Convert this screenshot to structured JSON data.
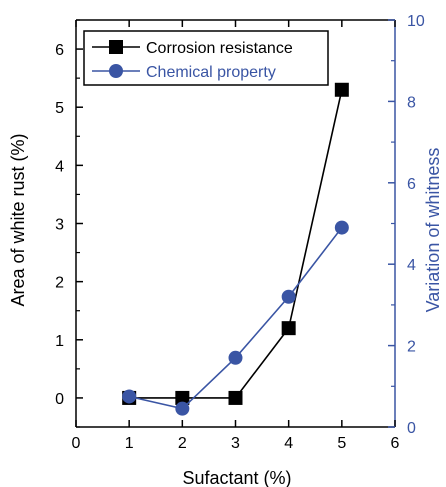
{
  "chart_data": {
    "type": "line",
    "xlabel": "Sufactant (%)",
    "ylabel": "Area of white rust (%)",
    "y2label": "Variation of whitness",
    "xlim": [
      0,
      6
    ],
    "ylim": [
      -0.5,
      6.5
    ],
    "y2lim": [
      0,
      10
    ],
    "xticks": [
      0,
      1,
      2,
      3,
      4,
      5,
      6
    ],
    "yticks": [
      0,
      1,
      2,
      3,
      4,
      5,
      6
    ],
    "y2ticks": [
      0,
      2,
      4,
      6,
      8,
      10
    ],
    "grid": false,
    "legend": "top-left",
    "colors": {
      "left_axis": "#000000",
      "right_axis": "#3a55a4"
    },
    "series": [
      {
        "name": "Corrosion resistance",
        "axis": "left",
        "marker": "square",
        "color": "#000000",
        "x": [
          1,
          2,
          3,
          4,
          5
        ],
        "y": [
          0,
          0,
          0,
          1.2,
          5.3
        ]
      },
      {
        "name": "Chemical  property",
        "axis": "right",
        "marker": "circle",
        "color": "#3a55a4",
        "x": [
          1,
          2,
          3,
          4,
          5
        ],
        "y": [
          0.75,
          0.45,
          1.7,
          3.2,
          4.9
        ]
      }
    ]
  }
}
